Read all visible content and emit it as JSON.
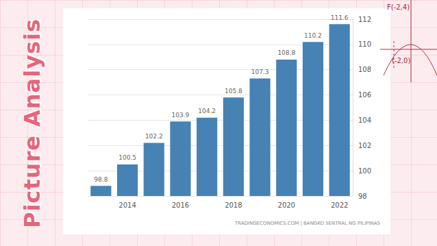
{
  "chart_data": {
    "type": "bar",
    "categories": [
      null,
      "2014",
      null,
      "2016",
      null,
      "2018",
      null,
      "2020",
      null,
      "2022"
    ],
    "values": [
      98.8,
      100.5,
      102.2,
      103.9,
      104.2,
      105.8,
      107.3,
      108.8,
      110.2,
      111.6
    ],
    "color": "#4682b4",
    "ylim": [
      98,
      112
    ],
    "yticks": [
      98,
      100,
      102,
      104,
      106,
      108,
      110,
      112
    ],
    "grid": true,
    "data_labels": true,
    "source": "TRADINGECONOMICS.COM | BANGKO SENTRAL NG PILIPINAS"
  },
  "slide": {
    "title": "Picture Analysis",
    "decorations": [
      "F(-2,4)",
      "(-2,0)"
    ]
  }
}
